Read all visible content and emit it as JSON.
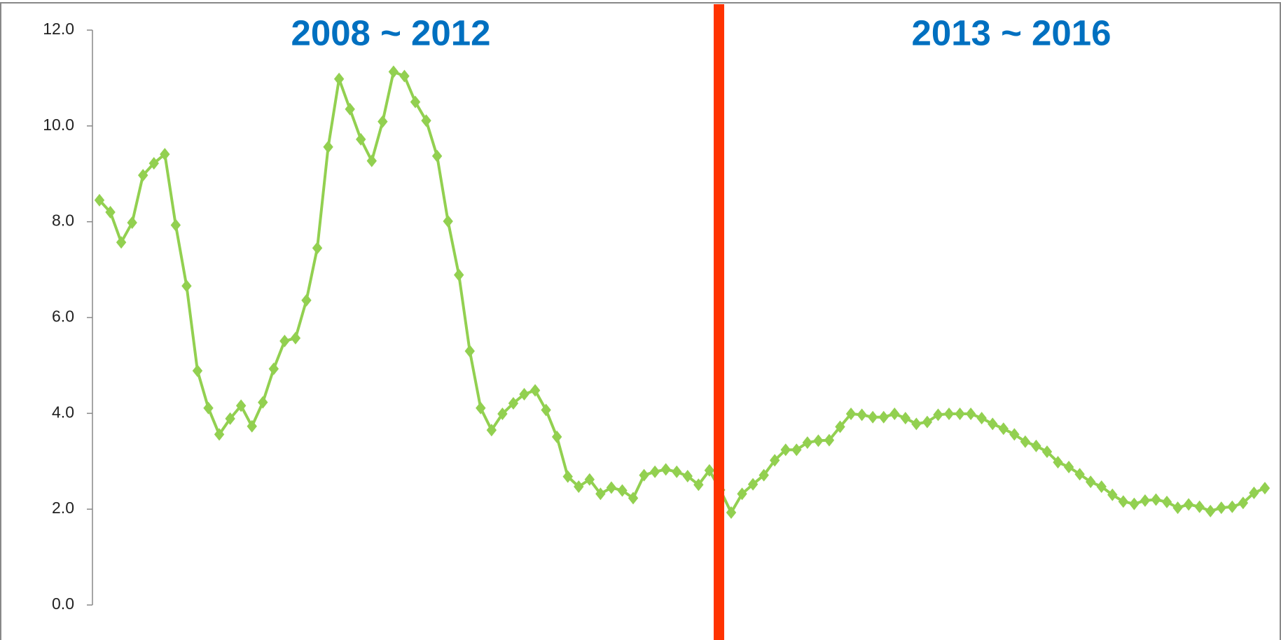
{
  "chart_data": {
    "type": "line",
    "annotations": [
      "2008 ~ 2012",
      "2013 ~ 2016"
    ],
    "series": [
      {
        "color": "#92d050",
        "values": [
          8.45,
          8.2,
          7.57,
          7.98,
          8.97,
          9.22,
          9.41,
          7.93,
          6.66,
          4.89,
          4.11,
          3.56,
          3.89,
          4.16,
          3.73,
          4.23,
          4.93,
          5.51,
          5.57,
          6.36,
          7.45,
          9.56,
          10.98,
          10.35,
          9.72,
          9.27,
          10.09,
          11.13,
          11.04,
          10.5,
          10.11,
          9.37,
          8.01,
          6.89,
          5.3,
          4.11,
          3.65,
          3.99,
          4.21,
          4.4,
          4.48,
          4.07,
          3.51,
          2.68,
          2.47,
          2.62,
          2.32,
          2.45,
          2.39,
          2.23,
          2.71,
          2.78,
          2.83,
          2.78,
          2.69,
          2.51,
          2.81,
          2.4,
          1.93,
          2.32,
          2.52,
          2.71,
          3.02,
          3.24,
          3.24,
          3.39,
          3.43,
          3.44,
          3.72,
          3.99,
          3.97,
          3.92,
          3.92,
          3.99,
          3.9,
          3.78,
          3.82,
          3.97,
          3.99,
          3.99,
          3.99,
          3.9,
          3.78,
          3.68,
          3.56,
          3.41,
          3.32,
          3.2,
          2.98,
          2.88,
          2.73,
          2.57,
          2.47,
          2.3,
          2.16,
          2.11,
          2.18,
          2.2,
          2.15,
          2.03,
          2.1,
          2.05,
          1.96,
          2.03,
          2.05,
          2.13,
          2.34,
          2.44
        ]
      }
    ],
    "ylim": [
      0,
      12
    ],
    "yticks": [
      {
        "value": 0,
        "label": "0.0"
      },
      {
        "value": 2,
        "label": "2.0"
      },
      {
        "value": 4,
        "label": "4.0"
      },
      {
        "value": 6,
        "label": "6.0"
      },
      {
        "value": 8,
        "label": "8.0"
      },
      {
        "value": 10,
        "label": "10.0"
      },
      {
        "value": 12,
        "label": "12.0"
      }
    ],
    "grid": false
  }
}
